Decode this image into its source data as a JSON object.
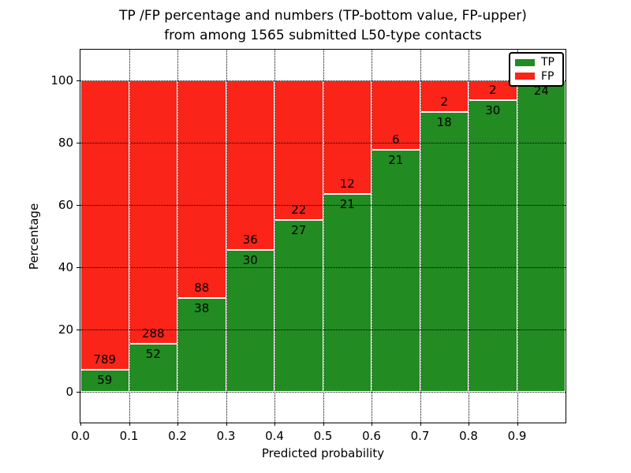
{
  "title_line1": "TP /FP percentage and numbers (TP-bottom value, FP-upper)",
  "title_line2": "from among 1565 submitted L50-type contacts",
  "axes": {
    "xlabel": "Predicted probability",
    "ylabel": "Percentage",
    "x_tick_labels": [
      "0.0",
      "0.1",
      "0.2",
      "0.3",
      "0.4",
      "0.5",
      "0.6",
      "0.7",
      "0.8",
      "0.9"
    ],
    "x_tick_values": [
      0.0,
      0.1,
      0.2,
      0.3,
      0.4,
      0.5,
      0.6,
      0.7,
      0.8,
      0.9
    ],
    "y_tick_labels": [
      "0",
      "20",
      "40",
      "60",
      "80",
      "100"
    ],
    "y_tick_values": [
      0,
      20,
      40,
      60,
      80,
      100
    ]
  },
  "legend": {
    "entries": [
      {
        "label": "TP",
        "color": "#228b22"
      },
      {
        "label": "FP",
        "color": "#fa2419"
      }
    ]
  },
  "colors": {
    "tp": "#228b22",
    "fp": "#fa2419",
    "bar_edge": "#ffffff",
    "grid": "#000000",
    "background": "#ffffff",
    "text": "#000000"
  },
  "chart_data": {
    "type": "bar",
    "variant": "stacked-100-percent",
    "title": "TP /FP percentage and numbers (TP-bottom value, FP-upper) from among 1565 submitted L50-type contacts",
    "xlabel": "Predicted probability",
    "ylabel": "Percentage",
    "xlim": [
      0.0,
      1.0
    ],
    "ylim": [
      -10,
      110
    ],
    "grid": true,
    "legend_position": "upper-right",
    "bin_width": 0.1,
    "bin_starts": [
      0.0,
      0.1,
      0.2,
      0.3,
      0.4,
      0.5,
      0.6,
      0.7,
      0.8,
      0.9
    ],
    "series": [
      {
        "name": "TP",
        "counts": [
          59,
          52,
          38,
          30,
          27,
          21,
          21,
          18,
          30,
          24
        ]
      },
      {
        "name": "FP",
        "counts": [
          789,
          288,
          88,
          36,
          22,
          12,
          6,
          2,
          2,
          0
        ]
      }
    ],
    "tp_percent": [
      6.96,
      15.29,
      30.16,
      45.45,
      55.1,
      63.64,
      77.78,
      90.0,
      93.75,
      100.0
    ],
    "total_contacts": 1565,
    "y_gridlines": [
      0,
      20,
      40,
      60,
      80,
      100
    ],
    "x_gridlines": [
      0.1,
      0.2,
      0.3,
      0.4,
      0.5,
      0.6,
      0.7,
      0.8,
      0.9
    ]
  }
}
